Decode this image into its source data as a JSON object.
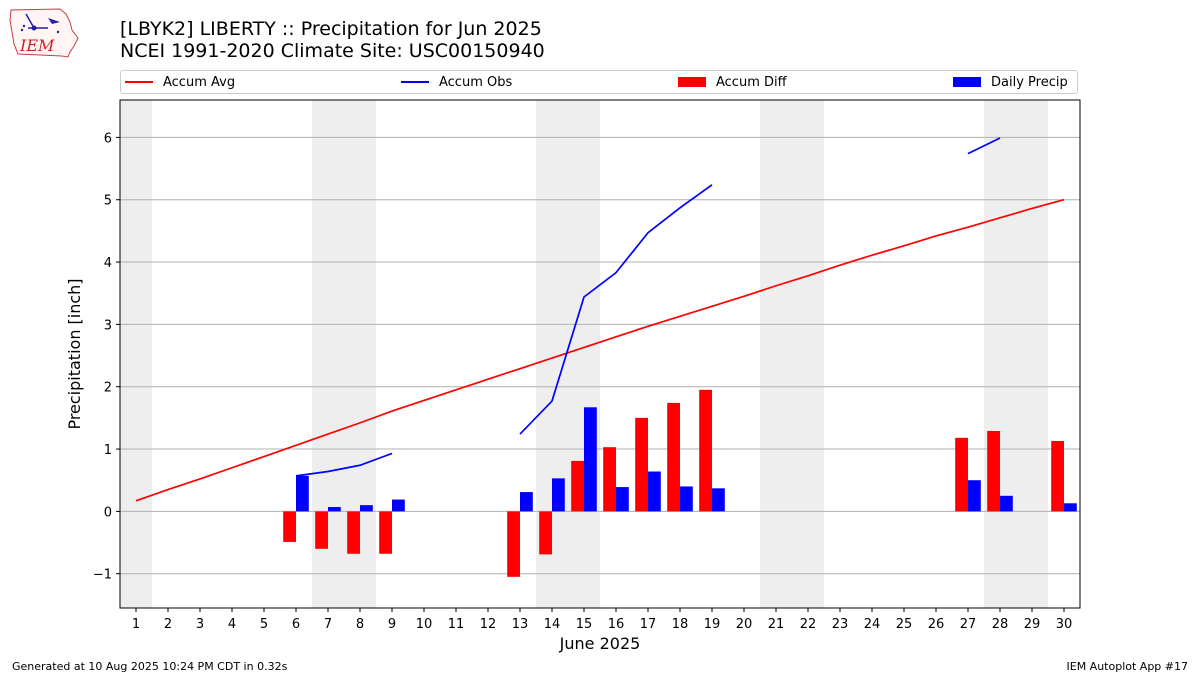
{
  "logo": {
    "text": "IEM"
  },
  "header": {
    "title_line1": "[LBYK2] LIBERTY :: Precipitation for Jun 2025",
    "title_line2": "NCEI 1991-2020 Climate Site: USC00150940"
  },
  "footer": {
    "left": "Generated at 10 Aug 2025 10:24 PM CDT in 0.32s",
    "right": "IEM Autoplot App #17"
  },
  "colors": {
    "avg": "#ff0000",
    "obs": "#0000ff",
    "diff": "#ff0000",
    "daily": "#0000ff",
    "weekend_shade": "#eeeeee",
    "grid": "#b0b0b0"
  },
  "chart_data": {
    "type": "bar",
    "title": "[LBYK2] LIBERTY :: Precipitation for Jun 2025",
    "subtitle": "NCEI 1991-2020 Climate Site: USC00150940",
    "xlabel": "June 2025",
    "ylabel": "Precipitation [inch]",
    "xlim": [
      0.5,
      30.5
    ],
    "ylim": [
      -1.55,
      6.6
    ],
    "y_ticks": [
      -1,
      0,
      1,
      2,
      3,
      4,
      5,
      6
    ],
    "y_tick_labels": [
      "−1",
      "0",
      "1",
      "2",
      "3",
      "4",
      "5",
      "6"
    ],
    "x_ticks": [
      1,
      2,
      3,
      4,
      5,
      6,
      7,
      8,
      9,
      10,
      11,
      12,
      13,
      14,
      15,
      16,
      17,
      18,
      19,
      20,
      21,
      22,
      23,
      24,
      25,
      26,
      27,
      28,
      29,
      30
    ],
    "x_tick_labels": [
      "1",
      "2",
      "3",
      "4",
      "5",
      "6",
      "7",
      "8",
      "9",
      "10",
      "11",
      "12",
      "13",
      "14",
      "15",
      "16",
      "17",
      "18",
      "19",
      "20",
      "21",
      "22",
      "23",
      "24",
      "25",
      "26",
      "27",
      "28",
      "29",
      "30"
    ],
    "grid": "horizontal",
    "legend_position": "top",
    "shaded_days": [
      [
        0.5,
        1.5
      ],
      [
        6.5,
        8.5
      ],
      [
        13.5,
        15.5
      ],
      [
        20.5,
        22.5
      ],
      [
        27.5,
        29.5
      ]
    ],
    "series": [
      {
        "name": "Accum Avg",
        "kind": "line",
        "x": [
          1,
          2,
          3,
          4,
          5,
          6,
          7,
          8,
          9,
          10,
          11,
          12,
          13,
          14,
          15,
          16,
          17,
          18,
          19,
          20,
          21,
          22,
          23,
          24,
          25,
          26,
          27,
          28,
          29,
          30
        ],
        "values": [
          0.17,
          0.35,
          0.52,
          0.7,
          0.88,
          1.06,
          1.24,
          1.42,
          1.61,
          1.78,
          1.95,
          2.12,
          2.29,
          2.46,
          2.63,
          2.8,
          2.97,
          3.13,
          3.29,
          3.45,
          3.62,
          3.78,
          3.95,
          4.11,
          4.26,
          4.42,
          4.56,
          4.71,
          4.86,
          5.0
        ]
      },
      {
        "name": "Accum Obs",
        "kind": "line",
        "segments": [
          {
            "x": [
              6,
              7,
              8,
              9
            ],
            "values": [
              0.57,
              0.64,
              0.74,
              0.93
            ]
          },
          {
            "x": [
              13,
              14,
              15,
              16,
              17,
              18,
              19
            ],
            "values": [
              1.24,
              1.77,
              3.44,
              3.83,
              4.47,
              4.87,
              5.24
            ]
          },
          {
            "x": [
              27,
              28
            ],
            "values": [
              5.74,
              5.99
            ]
          }
        ]
      },
      {
        "name": "Accum Diff",
        "kind": "bar",
        "x": [
          6,
          7,
          8,
          9,
          13,
          14,
          15,
          16,
          17,
          18,
          19,
          27,
          28,
          30
        ],
        "values": [
          -0.49,
          -0.6,
          -0.68,
          -0.68,
          -1.05,
          -0.69,
          0.81,
          1.03,
          1.5,
          1.74,
          1.95,
          1.18,
          1.29,
          1.13
        ]
      },
      {
        "name": "Daily Precip",
        "kind": "bar",
        "x": [
          6,
          7,
          8,
          9,
          13,
          14,
          15,
          16,
          17,
          18,
          19,
          27,
          28,
          30
        ],
        "values": [
          0.57,
          0.07,
          0.1,
          0.19,
          0.31,
          0.53,
          1.67,
          0.39,
          0.64,
          0.4,
          0.37,
          0.5,
          0.25,
          0.13
        ]
      }
    ]
  }
}
